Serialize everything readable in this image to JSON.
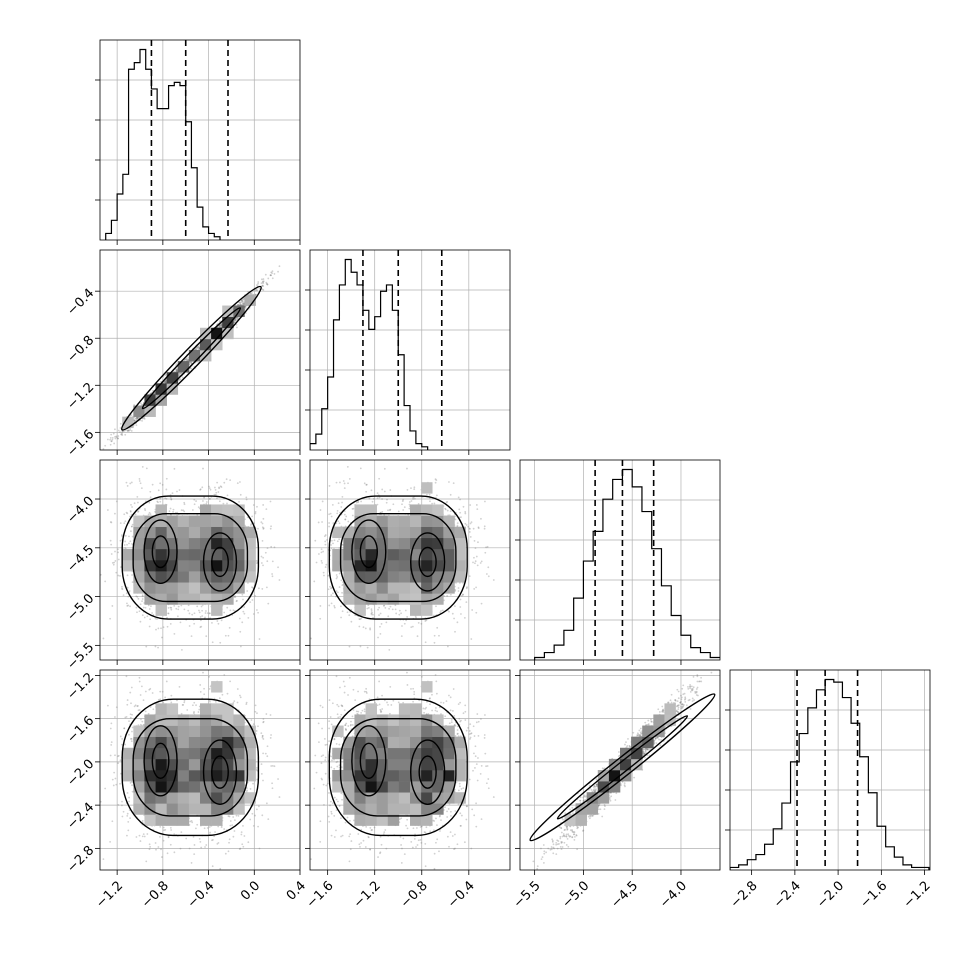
{
  "chart_data": {
    "type": "corner",
    "n_params": 4,
    "axis_ranges": [
      [
        -1.35,
        0.4
      ],
      [
        -1.75,
        -0.05
      ],
      [
        -5.65,
        -3.6
      ],
      [
        -3.0,
        -1.15
      ]
    ],
    "x_ticks": [
      [
        -1.2,
        -0.8,
        -0.4,
        0.0,
        0.4
      ],
      [
        -1.6,
        -1.2,
        -0.8,
        -0.4
      ],
      [
        -5.5,
        -5.0,
        -4.5,
        -4.0
      ],
      [
        -2.8,
        -2.4,
        -2.0,
        -1.6,
        -1.2
      ]
    ],
    "y_ticks": [
      null,
      [
        -1.6,
        -1.2,
        -0.8,
        -0.4
      ],
      [
        -5.5,
        -5.0,
        -4.5,
        -4.0
      ],
      [
        -2.8,
        -2.4,
        -2.0,
        -1.6,
        -1.2
      ]
    ],
    "x_tick_labels": [
      [
        "−1.2",
        "−0.8",
        "−0.4",
        "0.0",
        "0.4"
      ],
      [
        "−1.6",
        "−1.2",
        "−0.8",
        "−0.4"
      ],
      [
        "−5.5",
        "−5.0",
        "−4.5",
        "−4.0"
      ],
      [
        "−2.8",
        "−2.4",
        "−2.0",
        "−1.6",
        "−1.2"
      ]
    ],
    "y_tick_labels": [
      [],
      [
        "−1.6",
        "−1.2",
        "−0.8",
        "−0.4"
      ],
      [
        "−5.5",
        "−5.0",
        "−4.5",
        "−4.0"
      ],
      [
        "−2.8",
        "−2.4",
        "−2.0",
        "−1.6",
        "−1.2"
      ]
    ],
    "quantiles": [
      [
        -0.9,
        -0.6,
        -0.23
      ],
      [
        -1.3,
        -1.0,
        -0.63
      ],
      [
        -4.88,
        -4.6,
        -4.28
      ],
      [
        -2.38,
        -2.12,
        -1.82
      ]
    ],
    "histograms": [
      {
        "start": -1.3,
        "width": 0.05,
        "counts": [
          2,
          6,
          14,
          20,
          52,
          54,
          58,
          52,
          46,
          40,
          40,
          47,
          48,
          47,
          36,
          22,
          10,
          4,
          2,
          1
        ]
      },
      {
        "start": -1.75,
        "width": 0.05,
        "counts": [
          2,
          5,
          13,
          23,
          41,
          52,
          60,
          56,
          52,
          44,
          38,
          42,
          50,
          52,
          44,
          30,
          14,
          6,
          2,
          1
        ]
      },
      {
        "start": -5.5,
        "width": 0.1,
        "counts": [
          1,
          3,
          6,
          12,
          25,
          40,
          52,
          65,
          73,
          77,
          70,
          60,
          45,
          30,
          18,
          10,
          5,
          3,
          1,
          1
        ]
      },
      {
        "start": -3.0,
        "width": 0.08,
        "counts": [
          1,
          2,
          4,
          6,
          10,
          16,
          26,
          42,
          53,
          63,
          70,
          74,
          73,
          67,
          57,
          44,
          30,
          17,
          9,
          5,
          2,
          1,
          1
        ]
      }
    ],
    "modes": {
      "p0": [
        -0.82,
        -0.3
      ],
      "p1": [
        -1.25,
        -0.75
      ],
      "p2_mean": -4.6,
      "p2_sd": 0.3,
      "p3_mean": -2.05,
      "p3_sd": 0.3
    },
    "grid": true,
    "colors": {
      "ink": "#000000",
      "grid": "#b0b0b0",
      "points": "#7a7a7a"
    }
  }
}
